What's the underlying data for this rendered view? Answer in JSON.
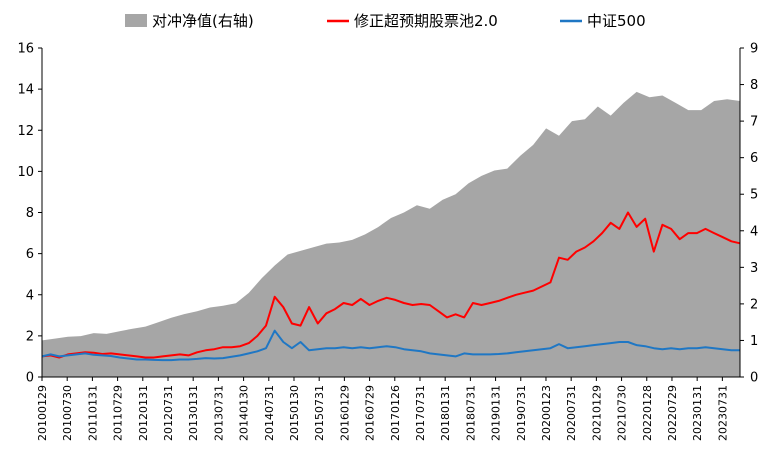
{
  "chart_data": {
    "type": "line",
    "legend_position": "top",
    "grid": false,
    "y_left": {
      "ylim": [
        0,
        16
      ],
      "ticks": [
        "0",
        "2",
        "4",
        "6",
        "8",
        "10",
        "12",
        "14",
        "16"
      ]
    },
    "y_right": {
      "ylim": [
        0,
        9
      ],
      "ticks": [
        "0",
        "1",
        "2",
        "3",
        "4",
        "5",
        "6",
        "7",
        "8",
        "9"
      ]
    },
    "x_ticks": [
      "20100129",
      "20100730",
      "20110131",
      "20110729",
      "20120131",
      "20120731",
      "20130131",
      "20130731",
      "20140130",
      "20140731",
      "20150130",
      "20150731",
      "20160129",
      "20160729",
      "20170126",
      "20170731",
      "20180131",
      "20180731",
      "20190131",
      "20190731",
      "20200123",
      "20200731",
      "20210129",
      "20210730",
      "20220128",
      "20220729",
      "20230131",
      "20230731"
    ],
    "series": [
      {
        "name": "对冲净值(右轴)",
        "kind": "area",
        "axis": "right",
        "color": "#a6a6a6",
        "x": [
          0,
          3,
          6,
          9,
          12,
          15,
          18,
          21,
          24,
          27,
          30,
          33,
          36,
          39,
          42,
          45,
          48,
          51,
          54,
          57,
          60,
          63,
          66,
          69,
          72,
          75,
          78,
          81,
          84,
          87,
          90,
          93,
          96,
          99,
          102,
          105,
          108,
          111,
          114,
          117,
          120,
          123,
          126,
          129,
          132,
          135,
          138,
          141,
          144,
          147,
          150,
          153,
          156,
          159,
          162
        ],
        "values": [
          1.0,
          1.05,
          1.1,
          1.12,
          1.2,
          1.18,
          1.25,
          1.32,
          1.38,
          1.5,
          1.62,
          1.72,
          1.8,
          1.9,
          1.95,
          2.02,
          2.3,
          2.7,
          3.05,
          3.35,
          3.45,
          3.55,
          3.65,
          3.68,
          3.75,
          3.9,
          4.1,
          4.35,
          4.5,
          4.7,
          4.6,
          4.85,
          5.0,
          5.3,
          5.5,
          5.65,
          5.7,
          6.05,
          6.35,
          6.8,
          6.6,
          7.0,
          7.05,
          7.4,
          7.15,
          7.5,
          7.8,
          7.65,
          7.7,
          7.5,
          7.3,
          7.3,
          7.55,
          7.6,
          7.55
        ]
      },
      {
        "name": "修正超预期股票池2.0",
        "kind": "line",
        "axis": "left",
        "color": "#ff0000",
        "x": [
          0,
          2,
          4,
          6,
          8,
          10,
          12,
          14,
          16,
          18,
          20,
          22,
          24,
          26,
          28,
          30,
          32,
          34,
          36,
          38,
          40,
          42,
          44,
          46,
          48,
          50,
          52,
          54,
          56,
          58,
          60,
          62,
          64,
          66,
          68,
          70,
          72,
          74,
          76,
          78,
          80,
          82,
          84,
          86,
          88,
          90,
          92,
          94,
          96,
          98,
          100,
          102,
          104,
          106,
          108,
          110,
          112,
          114,
          116,
          118,
          120,
          122,
          124,
          126,
          128,
          130,
          132,
          134,
          136,
          138,
          140,
          142,
          144,
          146,
          148,
          150,
          152,
          154,
          156,
          158,
          160,
          162
        ],
        "values": [
          1.0,
          1.05,
          0.95,
          1.1,
          1.15,
          1.2,
          1.18,
          1.12,
          1.15,
          1.1,
          1.05,
          1.0,
          0.95,
          0.95,
          1.0,
          1.05,
          1.1,
          1.05,
          1.2,
          1.3,
          1.35,
          1.45,
          1.45,
          1.5,
          1.65,
          2.0,
          2.5,
          3.9,
          3.4,
          2.6,
          2.5,
          3.4,
          2.6,
          3.1,
          3.3,
          3.6,
          3.5,
          3.8,
          3.5,
          3.7,
          3.85,
          3.75,
          3.6,
          3.5,
          3.55,
          3.5,
          3.2,
          2.9,
          3.05,
          2.9,
          3.6,
          3.5,
          3.6,
          3.7,
          3.85,
          4.0,
          4.1,
          4.2,
          4.4,
          4.6,
          5.8,
          5.7,
          6.1,
          6.3,
          6.6,
          7.0,
          7.5,
          7.2,
          8.0,
          7.3,
          7.7,
          6.1,
          7.4,
          7.2,
          6.7,
          7.0,
          7.0,
          7.2,
          7.0,
          6.8,
          6.6,
          6.5
        ]
      },
      {
        "name": "中证500",
        "kind": "line",
        "axis": "left",
        "color": "#1f77c4",
        "x": [
          0,
          2,
          4,
          6,
          8,
          10,
          12,
          14,
          16,
          18,
          20,
          22,
          24,
          26,
          28,
          30,
          32,
          34,
          36,
          38,
          40,
          42,
          44,
          46,
          48,
          50,
          52,
          54,
          56,
          58,
          60,
          62,
          64,
          66,
          68,
          70,
          72,
          74,
          76,
          78,
          80,
          82,
          84,
          86,
          88,
          90,
          92,
          94,
          96,
          98,
          100,
          102,
          104,
          106,
          108,
          110,
          112,
          114,
          116,
          118,
          120,
          122,
          124,
          126,
          128,
          130,
          132,
          134,
          136,
          138,
          140,
          142,
          144,
          146,
          148,
          150,
          152,
          154,
          156,
          158,
          160,
          162
        ],
        "values": [
          1.0,
          1.1,
          1.0,
          1.05,
          1.1,
          1.15,
          1.08,
          1.05,
          1.02,
          0.95,
          0.9,
          0.85,
          0.85,
          0.83,
          0.82,
          0.82,
          0.85,
          0.85,
          0.88,
          0.92,
          0.9,
          0.92,
          0.98,
          1.05,
          1.15,
          1.25,
          1.4,
          2.25,
          1.7,
          1.4,
          1.7,
          1.3,
          1.35,
          1.4,
          1.4,
          1.45,
          1.4,
          1.45,
          1.4,
          1.45,
          1.5,
          1.45,
          1.35,
          1.3,
          1.25,
          1.15,
          1.1,
          1.05,
          1.0,
          1.15,
          1.1,
          1.1,
          1.1,
          1.12,
          1.15,
          1.2,
          1.25,
          1.3,
          1.35,
          1.4,
          1.6,
          1.4,
          1.45,
          1.5,
          1.55,
          1.6,
          1.65,
          1.7,
          1.7,
          1.55,
          1.5,
          1.4,
          1.35,
          1.4,
          1.35,
          1.4,
          1.4,
          1.45,
          1.4,
          1.35,
          1.3,
          1.3
        ]
      }
    ]
  }
}
